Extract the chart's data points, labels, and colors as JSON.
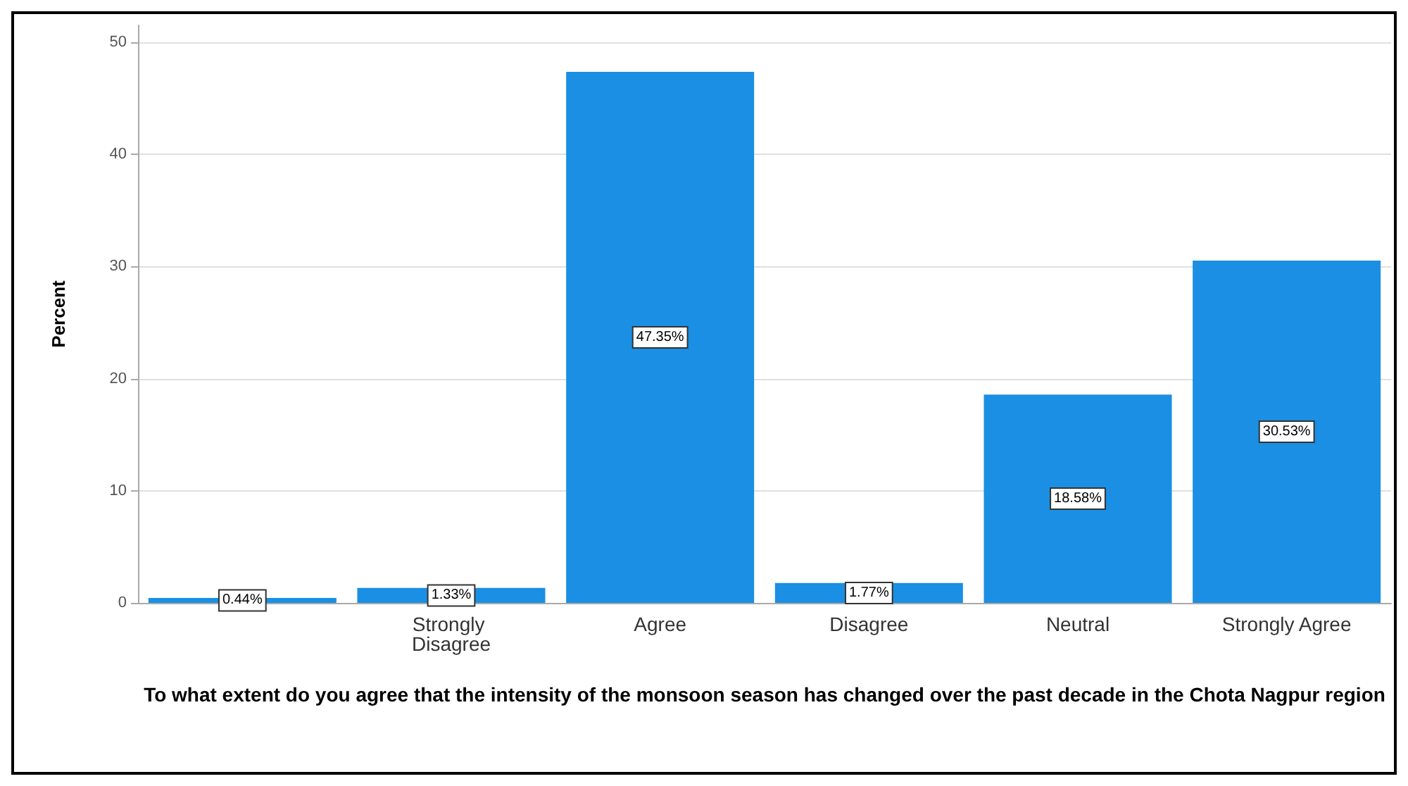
{
  "chart_data": {
    "type": "bar",
    "xlabel": "To what extent do you agree that the intensity of the monsoon season has changed over the past decade in the Chota Nagpur region",
    "ylabel": "Percent",
    "categories": [
      null,
      "Strongly Disagree",
      "Agree",
      "Disagree",
      "Neutral",
      "Strongly Agree"
    ],
    "values": [
      0.44,
      1.33,
      47.35,
      1.77,
      18.58,
      30.53
    ],
    "value_labels": [
      "0.44%",
      "1.33%",
      "47.35%",
      "1.77%",
      "18.58%",
      "30.53%"
    ],
    "color": "#1a8fe3",
    "ylim": [
      0,
      51.5
    ],
    "yticks": [
      0,
      10,
      20,
      30,
      40,
      50
    ],
    "grid": "y"
  }
}
